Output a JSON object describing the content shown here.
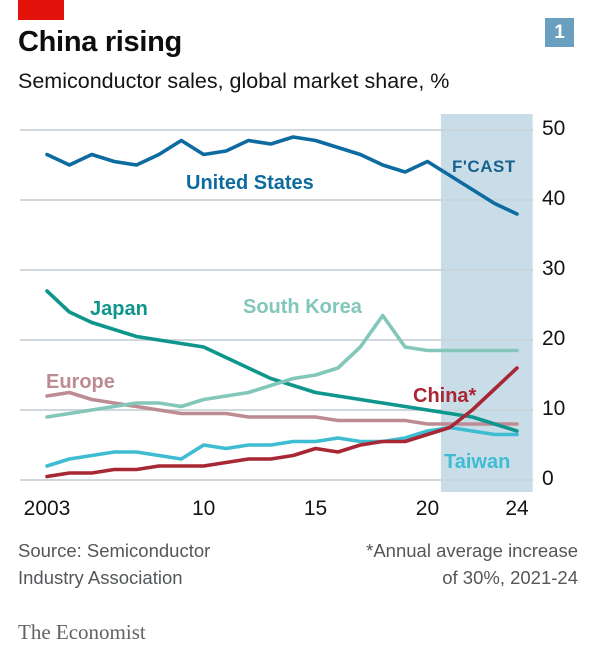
{
  "header": {
    "title": "China rising",
    "subtitle": "Semiconductor sales, global market share, %",
    "badge": "1"
  },
  "colors": {
    "brand_red": "#E3120B",
    "badge_bg": "#6A9FC0",
    "grid": "#C9D3D9",
    "band": "#C9DDE9",
    "axis_text": "#141414",
    "muted_text": "#53575A",
    "brand_text": "#636363"
  },
  "chart_data": {
    "type": "line",
    "title": "China rising",
    "subtitle": "Semiconductor sales, global market share, %",
    "unit": "%",
    "ylim": [
      0,
      50
    ],
    "grid": true,
    "legend_position": "annotated-on-lines",
    "x": [
      2003,
      2004,
      2005,
      2006,
      2007,
      2008,
      2009,
      2010,
      2011,
      2012,
      2013,
      2014,
      2015,
      2016,
      2017,
      2018,
      2019,
      2020,
      2021,
      2022,
      2023,
      2024
    ],
    "y_ticks": [
      50,
      40,
      30,
      20,
      10,
      0
    ],
    "x_tick_years": [
      2003,
      2010,
      2015,
      2020,
      2024
    ],
    "x_tick_labels": [
      "2003",
      "10",
      "15",
      "20",
      "24"
    ],
    "forecast": {
      "label": "F'CAST",
      "from": 2020.6,
      "to": 2024.7,
      "band_color": "#C9DDE9",
      "label_color": "#19618C"
    },
    "series": [
      {
        "name": "United States",
        "color": "#0D6BA0",
        "values": [
          46.5,
          45,
          46.5,
          45.5,
          45,
          46.5,
          48.5,
          46.5,
          47,
          48.5,
          48,
          49,
          48.5,
          47.5,
          46.5,
          45,
          44,
          45.5,
          43.5,
          41.5,
          39.5,
          38
        ]
      },
      {
        "name": "Japan",
        "color": "#0E968C",
        "values": [
          27,
          24,
          22.5,
          21.5,
          20.5,
          20,
          19.5,
          19,
          17.5,
          16,
          14.5,
          13.5,
          12.5,
          12,
          11.5,
          11,
          10.5,
          10,
          9.5,
          9,
          8,
          7
        ]
      },
      {
        "name": "South Korea",
        "color": "#82C7BA",
        "values": [
          9,
          9.5,
          10,
          10.5,
          11,
          11,
          10.5,
          11.5,
          12,
          12.5,
          13.5,
          14.5,
          15,
          16,
          19,
          23.5,
          19,
          18.5,
          18.5,
          18.5,
          18.5,
          18.5
        ]
      },
      {
        "name": "Europe",
        "color": "#BC8C92",
        "values": [
          12,
          12.5,
          11.5,
          11,
          10.5,
          10,
          9.5,
          9.5,
          9.5,
          9,
          9,
          9,
          9,
          8.5,
          8.5,
          8.5,
          8.5,
          8,
          8,
          8,
          8,
          8
        ]
      },
      {
        "name": "Taiwan",
        "color": "#3EBCD2",
        "values": [
          2,
          3,
          3.5,
          4,
          4,
          3.5,
          3,
          5,
          4.5,
          5,
          5,
          5.5,
          5.5,
          6,
          5.5,
          5.5,
          6,
          7,
          7.5,
          7,
          6.5,
          6.5
        ]
      },
      {
        "name": "China*",
        "color": "#A82734",
        "values": [
          0.5,
          1,
          1,
          1.5,
          1.5,
          2,
          2,
          2,
          2.5,
          3,
          3,
          3.5,
          4.5,
          4,
          5,
          5.5,
          5.5,
          6.5,
          7.5,
          10,
          13,
          16
        ]
      }
    ]
  },
  "footer": {
    "source": [
      "Source: Semiconductor",
      "Industry Association"
    ],
    "note": [
      "*Annual average increase",
      "of 30%, 2021-24"
    ],
    "brand": "The Economist"
  }
}
